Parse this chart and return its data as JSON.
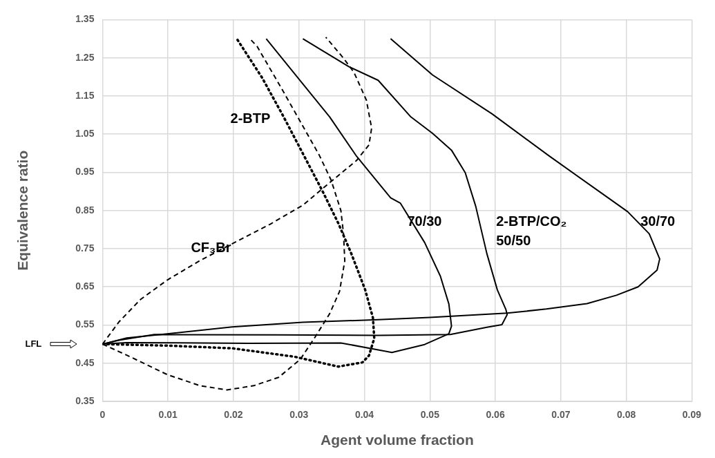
{
  "chart_data": {
    "type": "line",
    "xlabel": "Agent volume fraction",
    "ylabel": "Equivalence ratio",
    "xlim": [
      0,
      0.09
    ],
    "xticks": [
      0,
      0.01,
      0.02,
      0.03,
      0.04,
      0.05,
      0.06,
      0.07,
      0.08,
      0.09
    ],
    "ylim": [
      0.35,
      1.35
    ],
    "yticks": [
      0.35,
      0.45,
      0.55,
      0.65,
      0.75,
      0.85,
      0.95,
      1.05,
      1.15,
      1.25,
      1.35
    ],
    "grid": true,
    "legend": false,
    "series": [
      {
        "name": "2-BTP",
        "color": "#000000",
        "line_style": "dotted",
        "x": [
          0,
          0.0099,
          0.0198,
          0.0293,
          0.036,
          0.0397,
          0.0407,
          0.0415,
          0.0413,
          0.0401,
          0.038,
          0.036,
          0.0335,
          0.0306,
          0.0277,
          0.0244,
          0.0205
        ],
        "values": [
          0.5,
          0.496,
          0.489,
          0.467,
          0.441,
          0.452,
          0.47,
          0.515,
          0.569,
          0.643,
          0.737,
          0.817,
          0.904,
          0.999,
          1.094,
          1.197,
          1.3
        ]
      },
      {
        "name": "CF₃Br",
        "color": "#000000",
        "line_style": "dashed",
        "x": [
          0,
          0.0025,
          0.0058,
          0.0099,
          0.0149,
          0.0198,
          0.0256,
          0.0306,
          0.0347,
          0.0388,
          0.0407,
          0.0411,
          0.0403,
          0.0384,
          0.0368,
          0.0341
        ],
        "values": [
          0.5,
          0.558,
          0.617,
          0.668,
          0.719,
          0.763,
          0.814,
          0.864,
          0.923,
          0.981,
          1.022,
          1.066,
          1.139,
          1.212,
          1.249,
          1.304
        ]
      },
      {
        "color": "#000000",
        "line_style": "dashed",
        "x": [
          0,
          0.0037,
          0.0099,
          0.0149,
          0.019,
          0.0231,
          0.0269,
          0.0302,
          0.0326,
          0.0347,
          0.0362,
          0.037,
          0.0368,
          0.0364,
          0.0349,
          0.0331,
          0.0302,
          0.0273,
          0.0236,
          0.0225
        ],
        "values": [
          0.5,
          0.471,
          0.42,
          0.391,
          0.38,
          0.391,
          0.413,
          0.46,
          0.522,
          0.58,
          0.638,
          0.718,
          0.791,
          0.85,
          0.93,
          0.995,
          1.083,
          1.171,
          1.28,
          1.3
        ]
      },
      {
        "name": "70/30",
        "color": "#000000",
        "line_style": "solid",
        "x": [
          0,
          0.0037,
          0.0223,
          0.0364,
          0.0421,
          0.0442,
          0.0492,
          0.0529,
          0.0533,
          0.0529,
          0.0516,
          0.0492,
          0.0455,
          0.044,
          0.0388,
          0.0347,
          0.0302,
          0.025
        ],
        "values": [
          0.5,
          0.504,
          0.502,
          0.503,
          0.485,
          0.478,
          0.499,
          0.527,
          0.547,
          0.605,
          0.678,
          0.766,
          0.869,
          0.883,
          0.992,
          1.095,
          1.19,
          1.3
        ]
      },
      {
        "name": "2-BTP/CO₂ 50/50",
        "color": "#000000",
        "line_style": "solid",
        "x": [
          0,
          0.0025,
          0.0079,
          0.0264,
          0.0421,
          0.0531,
          0.0587,
          0.061,
          0.0618,
          0.0616,
          0.0603,
          0.0587,
          0.057,
          0.0554,
          0.0533,
          0.0504,
          0.0471,
          0.0421,
          0.0376,
          0.0306
        ],
        "values": [
          0.5,
          0.51,
          0.525,
          0.524,
          0.523,
          0.525,
          0.544,
          0.551,
          0.577,
          0.591,
          0.642,
          0.737,
          0.861,
          0.949,
          1.008,
          1.052,
          1.095,
          1.191,
          1.227,
          1.3
        ]
      },
      {
        "name": "30/70",
        "color": "#000000",
        "line_style": "solid",
        "x": [
          0,
          0.0037,
          0.0099,
          0.0198,
          0.0306,
          0.0421,
          0.05,
          0.0618,
          0.0678,
          0.074,
          0.0785,
          0.0818,
          0.0847,
          0.0851,
          0.0835,
          0.0802,
          0.076,
          0.0682,
          0.0595,
          0.0504,
          0.044
        ],
        "values": [
          0.5,
          0.516,
          0.527,
          0.545,
          0.557,
          0.564,
          0.57,
          0.581,
          0.592,
          0.606,
          0.628,
          0.65,
          0.694,
          0.723,
          0.789,
          0.847,
          0.898,
          0.993,
          1.103,
          1.205,
          1.3
        ]
      }
    ],
    "annotations": [
      "LFL"
    ]
  }
}
